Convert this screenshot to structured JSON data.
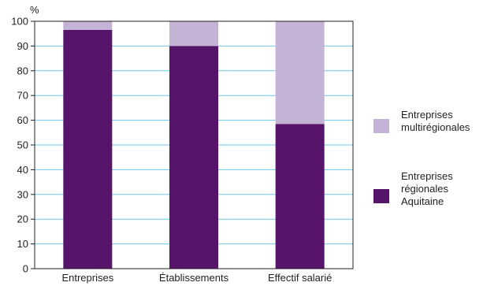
{
  "chart_data": {
    "type": "bar",
    "stacked": true,
    "percent_stacked": true,
    "ylabel": "%",
    "ylim": [
      0,
      100
    ],
    "yticks": [
      0,
      10,
      20,
      30,
      40,
      50,
      60,
      70,
      80,
      90,
      100
    ],
    "grid": true,
    "legend_position": "right",
    "categories": [
      "Entreprises",
      "Établissements",
      "Effectif salarié"
    ],
    "series": [
      {
        "name_lines": [
          "Entreprises",
          "régionales",
          "Aquitaine"
        ],
        "name": "Entreprises régionales Aquitaine",
        "color": "#56156b",
        "values": [
          96.5,
          90,
          58.5
        ]
      },
      {
        "name_lines": [
          "Entreprises",
          "multirégionales"
        ],
        "name": "Entreprises multirégionales",
        "color": "#c5b3d5",
        "values": [
          3.5,
          10,
          41.5
        ]
      }
    ],
    "gridline_color": "#6ec6e6",
    "axis_color": "#222222"
  }
}
